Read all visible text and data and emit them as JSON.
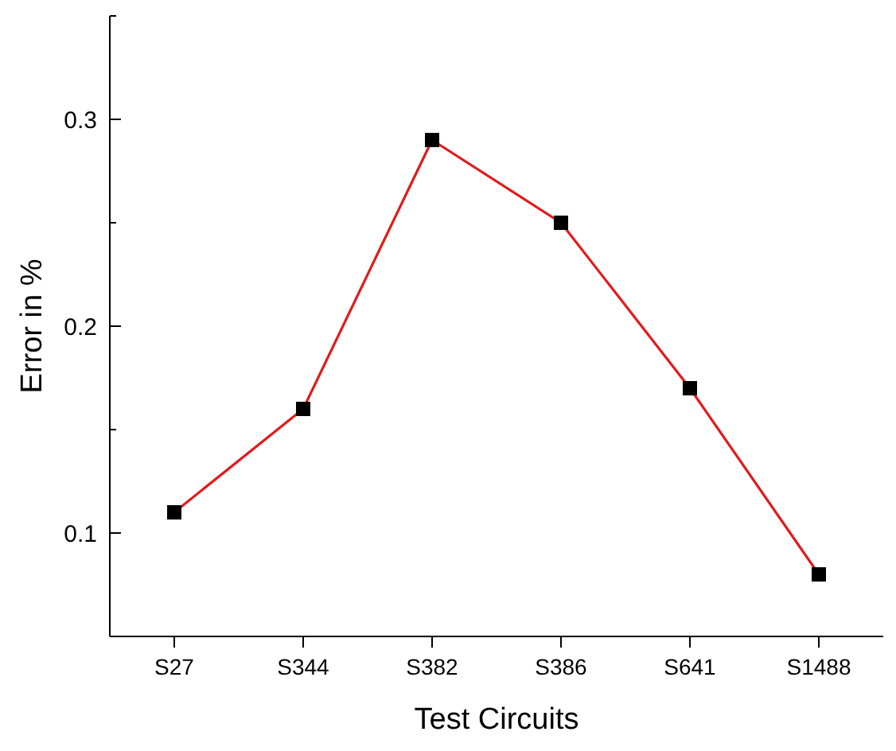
{
  "chart_data": {
    "type": "line",
    "xlabel": "Test Circuits",
    "ylabel": "Error in %",
    "categories": [
      "S27",
      "S344",
      "S382",
      "S386",
      "S641",
      "S1488"
    ],
    "series": [
      {
        "color": "#e31a1c",
        "values": [
          0.11,
          0.16,
          0.29,
          0.25,
          0.17,
          0.08
        ]
      }
    ],
    "ylim": [
      0.05,
      0.35
    ],
    "yticks": [
      {
        "value": 0.05,
        "label": null
      },
      0.1,
      {
        "value": 0.15,
        "label": null
      },
      0.2,
      {
        "value": 0.25,
        "label": null
      },
      0.3,
      {
        "value": 0.35,
        "label": null
      }
    ],
    "marker": "square",
    "line_style": "solid"
  }
}
